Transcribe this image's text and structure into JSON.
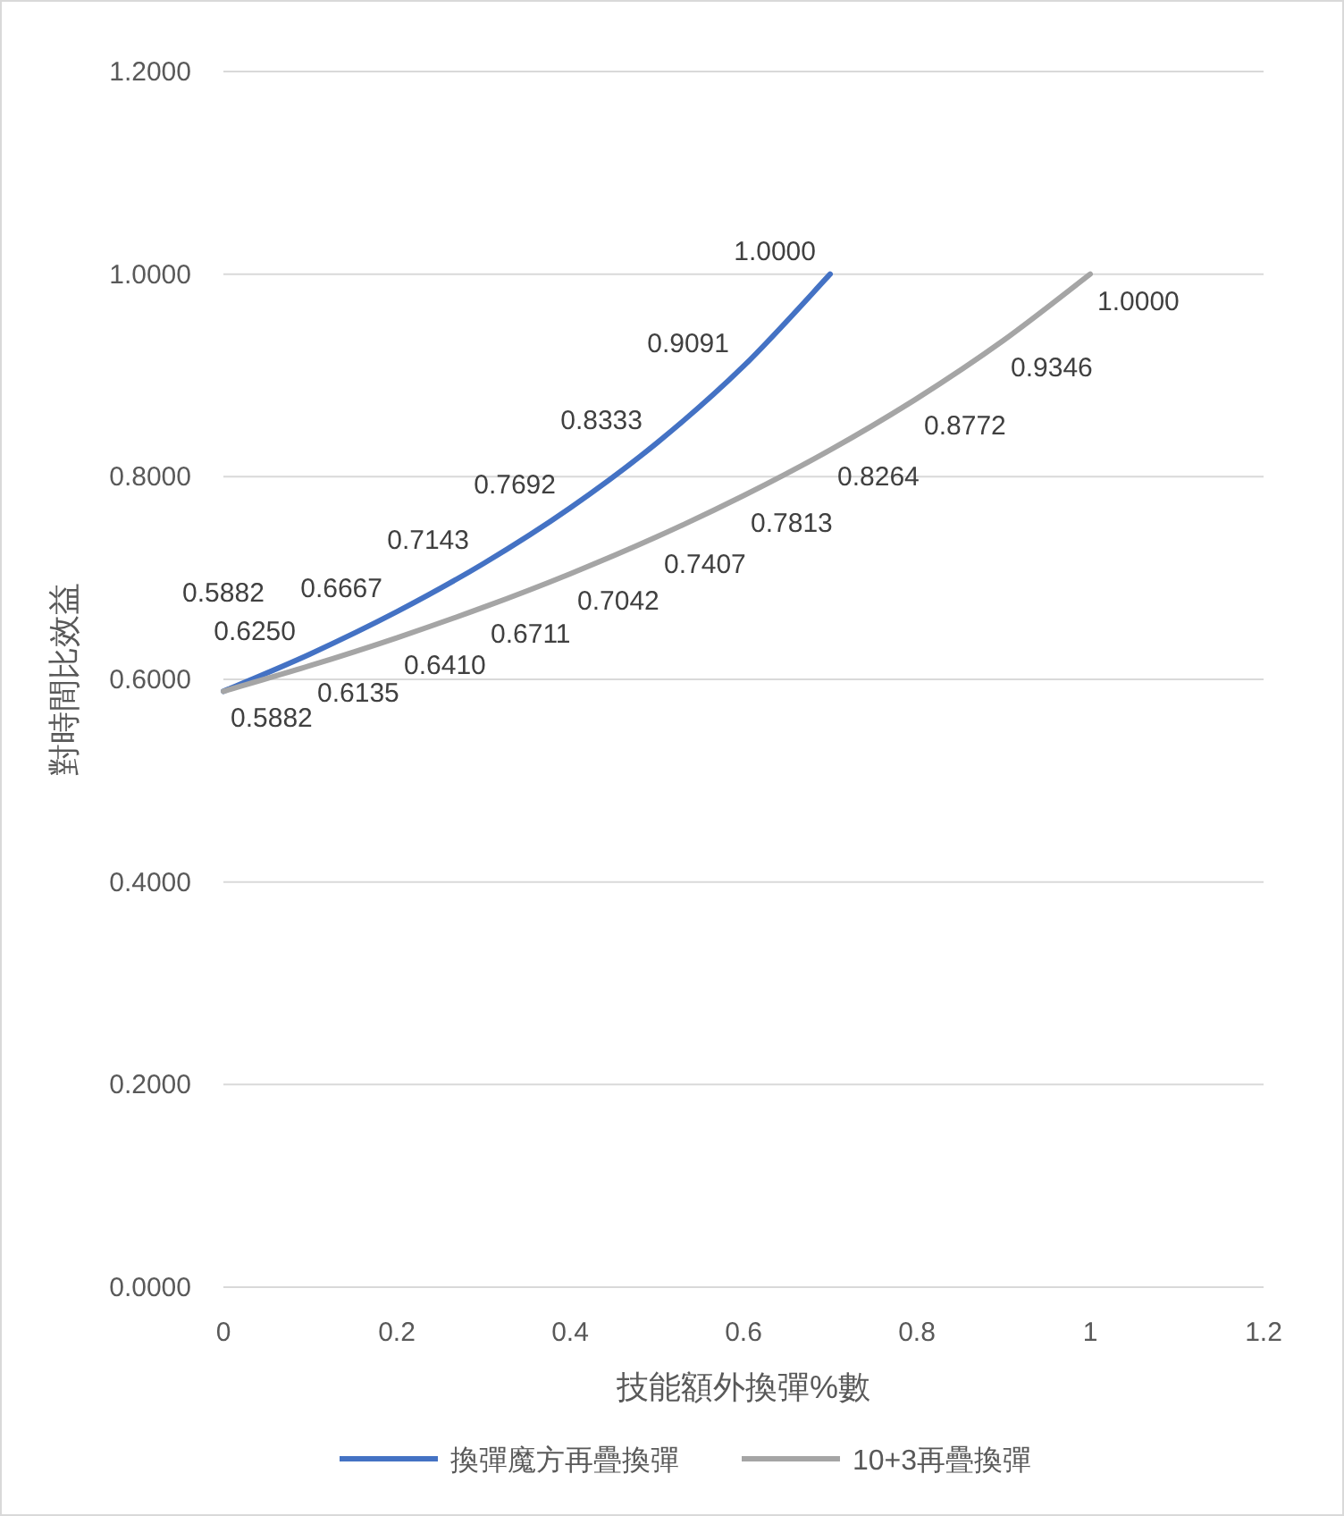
{
  "chart_data": {
    "type": "line",
    "xlabel": "技能額外換彈%數",
    "ylabel": "對時間比效益",
    "xlim": [
      0,
      1.2
    ],
    "xticks": [
      0,
      0.2,
      0.4,
      0.6,
      0.8,
      1,
      1.2
    ],
    "ylim": [
      0,
      1.2
    ],
    "yticks": [
      {
        "value": 0,
        "label": "0.0000"
      },
      {
        "value": 0.2,
        "label": "0.2000"
      },
      {
        "value": 0.4,
        "label": "0.4000"
      },
      {
        "value": 0.6,
        "label": "0.6000"
      },
      {
        "value": 0.8,
        "label": "0.8000"
      },
      {
        "value": 1,
        "label": "1.0000"
      },
      {
        "value": 1.2,
        "label": "1.2000"
      }
    ],
    "grid": "y",
    "legend": "bottom",
    "marker": "none",
    "line_style": "solid",
    "series": [
      {
        "name": "換彈魔方再疊換彈",
        "color": "#4472c4",
        "x": [
          0,
          0.1,
          0.2,
          0.3,
          0.4,
          0.5,
          0.6,
          0.7
        ],
        "values": [
          0.5882,
          0.625,
          0.6667,
          0.7143,
          0.7692,
          0.8333,
          0.9091,
          1.0
        ],
        "value_labels": [
          "0.5882",
          "0.6250",
          "0.6667",
          "0.7143",
          "0.7692",
          "0.8333",
          "0.9091",
          "1.0000"
        ]
      },
      {
        "name": "10+3再疊換彈",
        "color": "#a5a5a5",
        "x": [
          0,
          0.1,
          0.2,
          0.3,
          0.4,
          0.5,
          0.6,
          0.7,
          0.8,
          0.9,
          1.0
        ],
        "values": [
          0.5882,
          0.6135,
          0.641,
          0.6711,
          0.7042,
          0.7407,
          0.7813,
          0.8264,
          0.8772,
          0.9346,
          1.0
        ],
        "value_labels": [
          "0.5882",
          "0.6135",
          "0.6410",
          "0.6711",
          "0.7042",
          "0.7407",
          "0.7813",
          "0.8264",
          "0.8772",
          "0.9346",
          "1.0000"
        ]
      }
    ]
  }
}
